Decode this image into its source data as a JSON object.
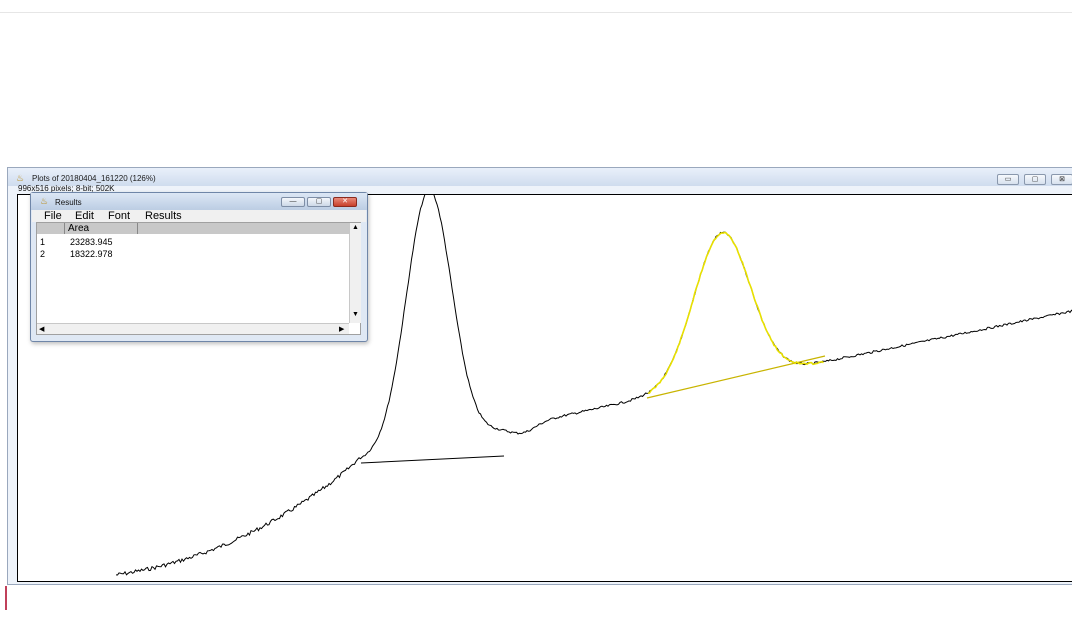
{
  "plot_window": {
    "title": "Plots of 20180404_161220 (126%)",
    "info": "996x516 pixels; 8-bit; 502K",
    "icon": "imagej-microscope-icon",
    "buttons": {
      "minimize": "▭",
      "maximize": "▢",
      "close": "⊠"
    },
    "profile_color": "#000000",
    "selection_color": "#e8e000",
    "baseline_color": "#000000"
  },
  "results_window": {
    "title": "Results",
    "icon": "imagej-microscope-icon",
    "buttons": {
      "minimize": "—",
      "maximize": "▢",
      "close": "✕"
    },
    "menu": [
      "File",
      "Edit",
      "Font",
      "Results"
    ],
    "columns": [
      "Area"
    ],
    "rows": [
      {
        "index": "1",
        "area": "23283.945"
      },
      {
        "index": "2",
        "area": "18322.978"
      }
    ]
  }
}
